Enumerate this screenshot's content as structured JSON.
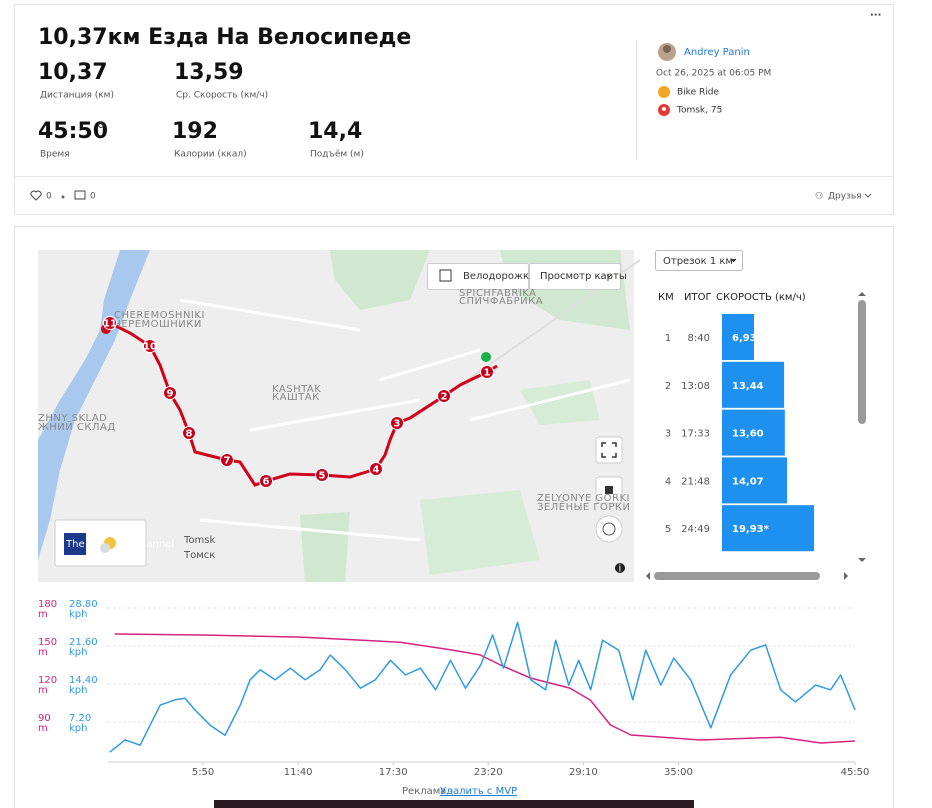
{
  "activity": {
    "title": "10,37км Езда На Велосипеде",
    "stats": [
      {
        "value": "10,37",
        "label": "Дистанция (км)"
      },
      {
        "value": "13,59",
        "label": "Ср. Скорость (км/ч)"
      },
      {
        "value": "45:50",
        "label": "Время"
      },
      {
        "value": "192",
        "label": "Калории (ккал)"
      },
      {
        "value": "14,4",
        "label": "Подъём (м)"
      }
    ],
    "athlete": "Andrey Panin",
    "date": "Oct 26, 2025 at 06:05 PM",
    "sport": "Bike Ride",
    "location": "Tomsk, 75",
    "kudos": "0",
    "comments": "0",
    "visibility": "Друзья"
  },
  "map": {
    "bike_lanes": "Велодорожка",
    "map_view": "Просмотр карты",
    "markers": [
      1,
      2,
      3,
      4,
      5,
      6,
      7,
      8,
      9,
      10,
      11
    ],
    "places": [
      "CHEREMOSHNIKI",
      "ЧЕРЕМОШНИКИ",
      "SPICHFABRIKA",
      "СПИЧФАБРИКА",
      "KASHTAK",
      "КАШТАК",
      "ZHNY SKLAD",
      "ЖНИЙ СКЛАД",
      "ZELYONYE GORKI",
      "ЗЕЛЁНЫЕ ГОРКИ",
      "Tomsk",
      "Томск"
    ],
    "weather": "The Weather Channel"
  },
  "splits": {
    "selector": "Отрезок 1 км",
    "headers": [
      "КМ",
      "ИТОГ",
      "СКОРОСТЬ (км/ч)"
    ],
    "rows": [
      {
        "km": 1,
        "time": "8:40",
        "speed": {
          "value": 6.93,
          "label": "6,93"
        }
      },
      {
        "km": 2,
        "time": "13:08",
        "speed": {
          "value": 13.44,
          "label": "13,44"
        }
      },
      {
        "km": 3,
        "time": "17:33",
        "speed": {
          "value": 13.6,
          "label": "13,60"
        }
      },
      {
        "km": 4,
        "time": "21:48",
        "speed": {
          "value": 14.07,
          "label": "14,07"
        }
      },
      {
        "km": 5,
        "time": "24:49",
        "speed": {
          "value": 19.93,
          "label": "19,93*"
        }
      }
    ]
  },
  "chart_data": {
    "type": "line",
    "xlim": [
      0,
      2750
    ],
    "xticks": [
      {
        "value": 350,
        "label": "5:50"
      },
      {
        "value": 700,
        "label": "11:40"
      },
      {
        "value": 1050,
        "label": "17:30"
      },
      {
        "value": 1400,
        "label": "23:20"
      },
      {
        "value": 1750,
        "label": "29:10"
      },
      {
        "value": 2100,
        "label": "35:00"
      },
      {
        "value": 2750,
        "label": "45:50"
      }
    ],
    "ylim": [
      60,
      180
    ],
    "yticks": [
      90,
      120,
      150,
      180
    ],
    "y_unit": "m",
    "y2lim": [
      0,
      28.8
    ],
    "y2ticks": [
      {
        "value": 7.2,
        "label": "7.20"
      },
      {
        "value": 14.4,
        "label": "14.40"
      },
      {
        "value": 21.6,
        "label": "21.60"
      },
      {
        "value": 28.8,
        "label": "28.80"
      }
    ],
    "y2_unit": "kph",
    "grid": true,
    "series": [
      {
        "color": "#d6237f",
        "axis": "y",
        "x": [
          25,
          340,
          710,
          1075,
          1260,
          1370,
          1445,
          1555,
          1700,
          1775,
          1850,
          1925,
          2180,
          2475,
          2625,
          2750
        ],
        "values": [
          159.5,
          158.7,
          157,
          153,
          147,
          143,
          135,
          124.7,
          116.8,
          107.4,
          87.6,
          79.7,
          75.8,
          78,
          73.4,
          75
        ]
      },
      {
        "color": "#2f9be3",
        "axis": "y2",
        "x": [
          7,
          63,
          118,
          192,
          247,
          284,
          320,
          376,
          431,
          487,
          523,
          560,
          615,
          671,
          726,
          781,
          818,
          874,
          929,
          984,
          1040,
          1095,
          1150,
          1206,
          1261,
          1316,
          1372,
          1416,
          1456,
          1508,
          1556,
          1611,
          1648,
          1696,
          1733,
          1777,
          1821,
          1880,
          1932,
          1980,
          2035,
          2083,
          2145,
          2219,
          2292,
          2366,
          2421,
          2476,
          2531,
          2605,
          2660,
          2697,
          2750
        ],
        "values": [
          1.5,
          3.8,
          2.8,
          10.4,
          11.4,
          11.7,
          9.5,
          6.6,
          4.7,
          10.4,
          15.2,
          17.1,
          15.2,
          17.4,
          15.2,
          17.1,
          19.9,
          17.1,
          13.6,
          15.2,
          18.9,
          16.1,
          17.4,
          13.3,
          18.9,
          13.6,
          18,
          23.7,
          17.4,
          26.1,
          15.2,
          13.3,
          22.7,
          14.2,
          18.9,
          13.3,
          22.7,
          20.8,
          11.4,
          20.8,
          14.2,
          19.3,
          15.2,
          6.1,
          16.1,
          20.8,
          21.8,
          13.3,
          11,
          14.2,
          13.3,
          16.1,
          9.5
        ]
      }
    ]
  },
  "ad": {
    "label": "Реклама -",
    "remove": "Удалить с MVP"
  }
}
